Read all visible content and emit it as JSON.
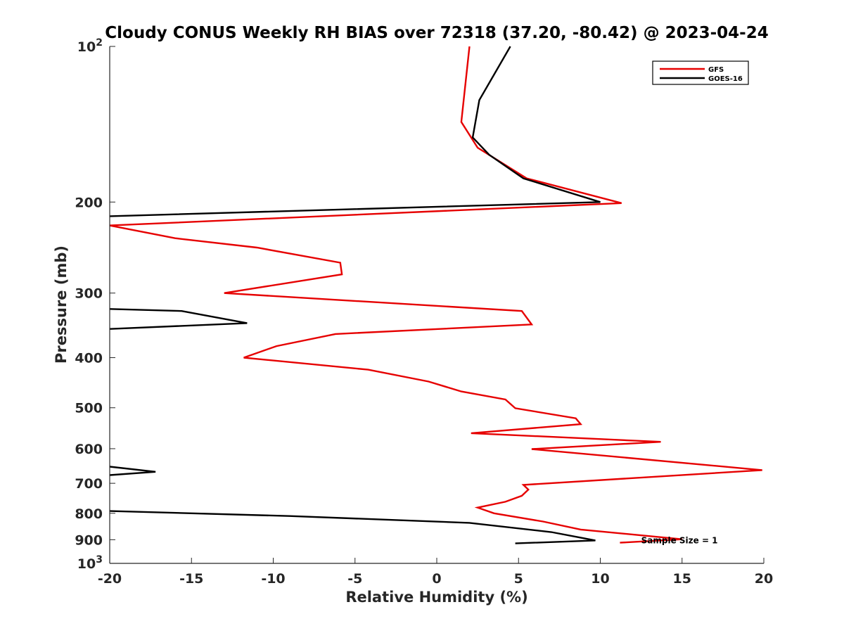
{
  "chart_data": {
    "type": "line",
    "title": "Cloudy CONUS Weekly RH BIAS over 72318 (37.20, -80.42) @ 2023-04-24",
    "xlabel": "Relative Humidity (%)",
    "ylabel": "Pressure (mb)",
    "xlim": [
      -20,
      20
    ],
    "ylim": [
      100,
      1000
    ],
    "yscale": "log",
    "yreversed": true,
    "grid": false,
    "legend_position": "top-right",
    "x_ticks": [
      "-20",
      "-15",
      "-10",
      "-5",
      "0",
      "5",
      "10",
      "15",
      "20"
    ],
    "y_ticks": [
      {
        "value": 100,
        "base": "10",
        "exp": "2"
      },
      {
        "value": 200,
        "label": "200"
      },
      {
        "value": 300,
        "label": "300"
      },
      {
        "value": 400,
        "label": "400"
      },
      {
        "value": 500,
        "label": "500"
      },
      {
        "value": 600,
        "label": "600"
      },
      {
        "value": 700,
        "label": "700"
      },
      {
        "value": 800,
        "label": "800"
      },
      {
        "value": 900,
        "label": "900"
      },
      {
        "value": 1000,
        "base": "10",
        "exp": "3"
      }
    ],
    "annotation": {
      "text": "Sample Size = 1",
      "x": 12.5,
      "y": 900
    },
    "series": [
      {
        "name": "GFS",
        "color": "#e60000",
        "points": [
          [
            2.0,
            100
          ],
          [
            1.5,
            140
          ],
          [
            2.5,
            157
          ],
          [
            5.5,
            180
          ],
          [
            11.3,
            201
          ],
          [
            -20.0,
            222
          ],
          [
            -16.0,
            235
          ],
          [
            -11.0,
            245
          ],
          [
            -5.9,
            262
          ],
          [
            -5.8,
            276
          ],
          [
            -13.0,
            300
          ],
          [
            5.2,
            325
          ],
          [
            5.8,
            345
          ],
          [
            -6.2,
            360
          ],
          [
            -9.8,
            380
          ],
          [
            -11.8,
            400
          ],
          [
            -4.2,
            422
          ],
          [
            -0.5,
            445
          ],
          [
            1.5,
            465
          ],
          [
            4.2,
            482
          ],
          [
            4.8,
            501
          ],
          [
            8.5,
            524
          ],
          [
            8.8,
            538
          ],
          [
            2.1,
            560
          ],
          [
            13.7,
            582
          ],
          [
            5.8,
            601
          ],
          [
            19.9,
            660
          ],
          [
            5.3,
            705
          ],
          [
            5.6,
            720
          ],
          [
            5.2,
            740
          ],
          [
            4.2,
            760
          ],
          [
            2.5,
            780
          ],
          [
            3.5,
            800
          ],
          [
            6.5,
            830
          ],
          [
            8.8,
            860
          ],
          [
            15.0,
            898
          ],
          [
            11.2,
            912
          ]
        ]
      },
      {
        "name": "GOES-16",
        "color": "#000000",
        "points": [
          [
            4.5,
            100
          ],
          [
            2.6,
            127
          ],
          [
            2.2,
            150
          ],
          [
            3.2,
            162
          ],
          [
            5.3,
            180
          ],
          [
            10.0,
            200
          ],
          [
            -20.0,
            213
          ],
          null,
          [
            -20.0,
            322
          ],
          [
            -15.6,
            325
          ],
          [
            -11.6,
            343
          ],
          [
            -20.0,
            352
          ],
          null,
          [
            -20.0,
            650
          ],
          [
            -17.2,
            665
          ],
          [
            -20.0,
            675
          ],
          null,
          [
            -20.0,
            792
          ],
          [
            -9.0,
            810
          ],
          [
            2.0,
            835
          ],
          [
            7.0,
            870
          ],
          [
            9.7,
            903
          ],
          [
            4.8,
            915
          ]
        ]
      }
    ]
  }
}
